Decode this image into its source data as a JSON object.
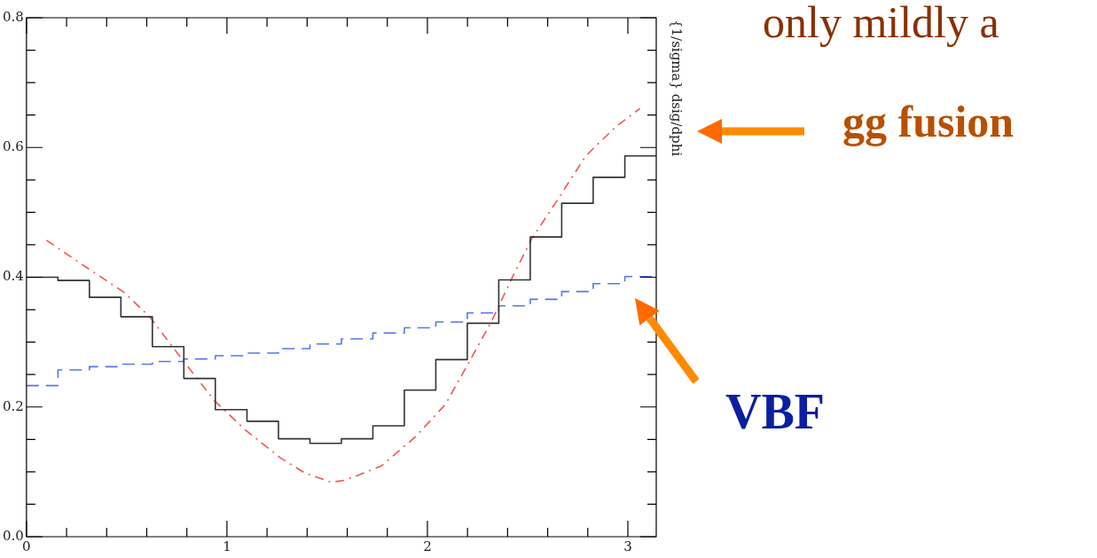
{
  "chart_data": {
    "type": "line",
    "ylabel": "{1/sigma} dsig/dphi",
    "annotations": [
      "only mildly a",
      "gg fusion",
      "VBF"
    ],
    "xlim": [
      0,
      3.1416
    ],
    "ylim": [
      0,
      0.8
    ],
    "xticks": [
      0,
      {
        "value": 0.2,
        "label": null
      },
      {
        "value": 0.4,
        "label": null
      },
      {
        "value": 0.6,
        "label": null
      },
      {
        "value": 0.8,
        "label": null
      },
      1,
      {
        "value": 1.2,
        "label": null
      },
      {
        "value": 1.4,
        "label": null
      },
      {
        "value": 1.6,
        "label": null
      },
      {
        "value": 1.8,
        "label": null
      },
      2,
      {
        "value": 2.2,
        "label": null
      },
      {
        "value": 2.4,
        "label": null
      },
      {
        "value": 2.6,
        "label": null
      },
      {
        "value": 2.8,
        "label": null
      },
      3
    ],
    "yticks": [
      {
        "value": 0,
        "label": "0.0"
      },
      {
        "value": 0.05,
        "label": null
      },
      {
        "value": 0.1,
        "label": null
      },
      {
        "value": 0.15,
        "label": null
      },
      {
        "value": 0.2,
        "label": "0.2"
      },
      {
        "value": 0.25,
        "label": null
      },
      {
        "value": 0.3,
        "label": null
      },
      {
        "value": 0.35,
        "label": null
      },
      {
        "value": 0.4,
        "label": "0.4"
      },
      {
        "value": 0.45,
        "label": null
      },
      {
        "value": 0.5,
        "label": null
      },
      {
        "value": 0.55,
        "label": null
      },
      {
        "value": 0.6,
        "label": "0.6"
      },
      {
        "value": 0.65,
        "label": null
      },
      {
        "value": 0.7,
        "label": null
      },
      {
        "value": 0.75,
        "label": null
      },
      {
        "value": 0.8,
        "label": "0.8"
      }
    ],
    "series": [
      {
        "type": "step",
        "color": "#333333",
        "line_style": "solid",
        "x": [
          0,
          0.157,
          0.314,
          0.471,
          0.628,
          0.785,
          0.942,
          1.1,
          1.257,
          1.414,
          1.571,
          1.728,
          1.885,
          2.042,
          2.199,
          2.356,
          2.513,
          2.67,
          2.827,
          2.985,
          3.1416
        ],
        "values": [
          0.4,
          0.395,
          0.369,
          0.339,
          0.293,
          0.244,
          0.196,
          0.178,
          0.151,
          0.144,
          0.151,
          0.171,
          0.226,
          0.273,
          0.329,
          0.396,
          0.462,
          0.514,
          0.554,
          0.587,
          0.587
        ]
      },
      {
        "type": "step",
        "color": "#5577ee",
        "line_style": "dashed",
        "x": [
          0,
          0.157,
          0.314,
          0.471,
          0.628,
          0.785,
          0.942,
          1.1,
          1.257,
          1.414,
          1.571,
          1.728,
          1.885,
          2.042,
          2.199,
          2.356,
          2.513,
          2.67,
          2.827,
          2.985,
          3.1416
        ],
        "values": [
          0.233,
          0.257,
          0.262,
          0.266,
          0.27,
          0.274,
          0.279,
          0.283,
          0.29,
          0.297,
          0.305,
          0.314,
          0.322,
          0.331,
          0.345,
          0.356,
          0.366,
          0.378,
          0.39,
          0.401,
          0.401
        ]
      },
      {
        "type": "line",
        "color": "#ee5555",
        "line_style": "dashdot",
        "x": [
          0.1,
          0.3,
          0.49,
          0.62,
          0.77,
          0.94,
          1.09,
          1.26,
          1.39,
          1.52,
          1.59,
          1.77,
          1.94,
          2.09,
          2.2,
          2.32,
          2.43,
          2.52,
          2.64,
          2.79,
          2.94,
          3.06
        ],
        "values": [
          0.457,
          0.415,
          0.376,
          0.337,
          0.276,
          0.209,
          0.165,
          0.123,
          0.098,
          0.084,
          0.087,
          0.109,
          0.154,
          0.204,
          0.265,
          0.332,
          0.404,
          0.459,
          0.515,
          0.587,
          0.632,
          0.66
        ]
      }
    ]
  }
}
